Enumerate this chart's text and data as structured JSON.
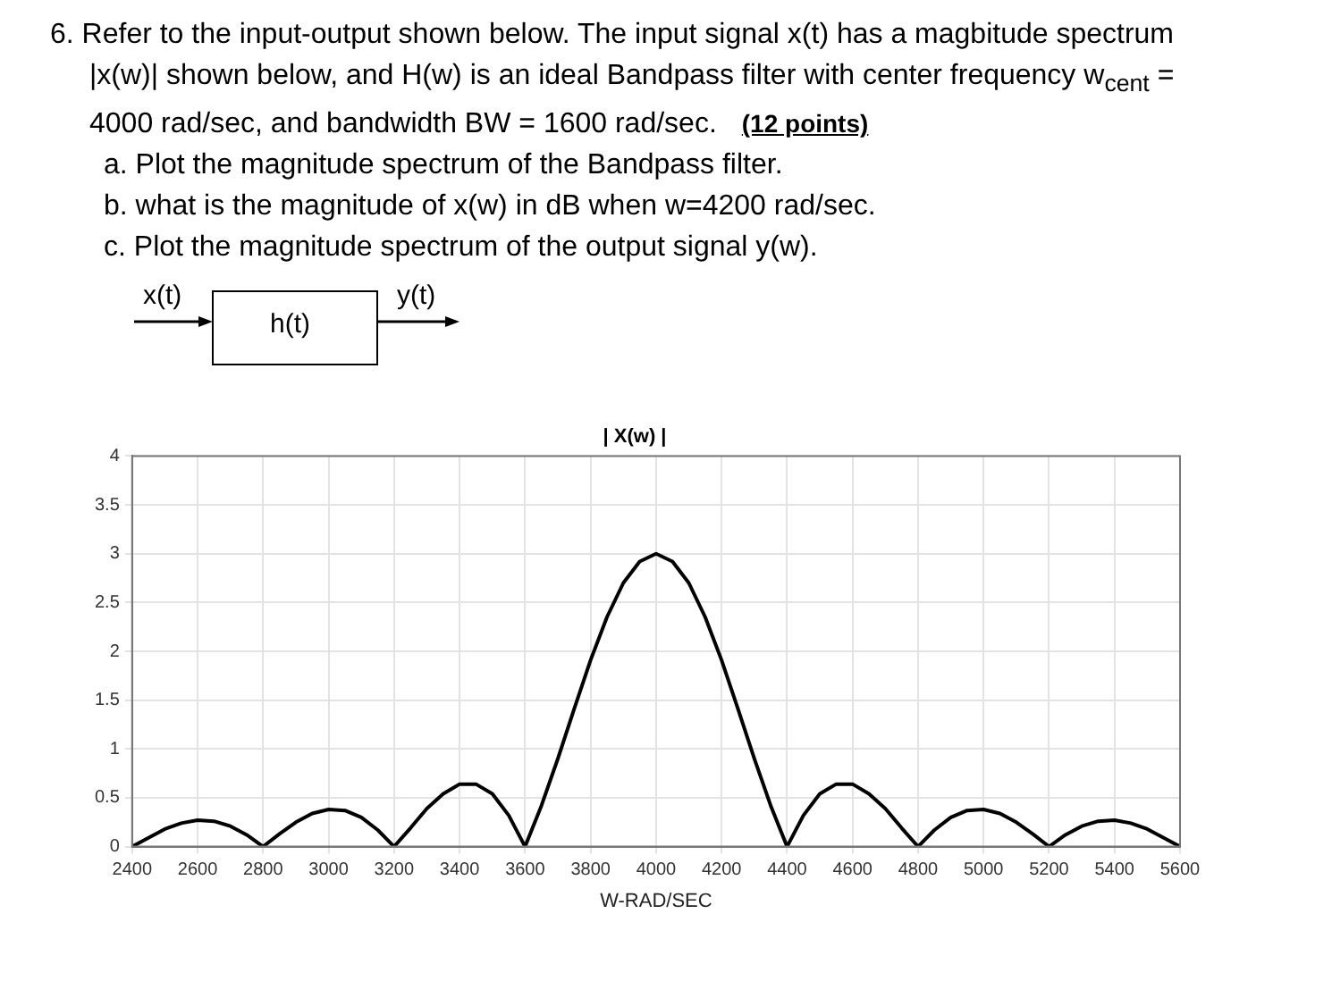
{
  "chart_data": {
    "type": "line",
    "title": "| X(w) |",
    "xlabel": "W-RAD/SEC",
    "annotations": [
      "6. Refer to the input-output shown below. The input signal x(t) has a magbitude spectrum |x(w)| shown below, and H(w) is an ideal Bandpass filter with center frequency w$_{cent}$ = 4000 rad/sec, and bandwidth BW = 1600 rad/sec.",
      "(12 points)",
      "a. Plot the magnitude spectrum of the Bandpass filter.",
      "b. what is the magnitude of x(w) in dB when w=4200 rad/sec.",
      "c. Plot the magnitude spectrum of the output signal y(w).",
      "x(t)",
      "h(t)",
      "y(t)"
    ],
    "x": [
      2400,
      2450,
      2500,
      2550,
      2600,
      2650,
      2700,
      2750,
      2800,
      2850,
      2900,
      2950,
      3000,
      3050,
      3100,
      3150,
      3200,
      3250,
      3300,
      3350,
      3400,
      3450,
      3500,
      3550,
      3600,
      3650,
      3700,
      3750,
      3800,
      3850,
      3900,
      3950,
      4000,
      4050,
      4100,
      4150,
      4200,
      4250,
      4300,
      4350,
      4400,
      4450,
      4500,
      4550,
      4600,
      4650,
      4700,
      4750,
      4800,
      4850,
      4900,
      4950,
      5000,
      5050,
      5100,
      5150,
      5200,
      5250,
      5300,
      5350,
      5400,
      5450,
      5500,
      5550,
      5600
    ],
    "series": [
      {
        "color": "#000000",
        "values": [
          0,
          0.09,
          0.18,
          0.24,
          0.27,
          0.26,
          0.21,
          0.12,
          0,
          0.13,
          0.25,
          0.34,
          0.38,
          0.37,
          0.3,
          0.17,
          0,
          0.19,
          0.39,
          0.54,
          0.64,
          0.64,
          0.54,
          0.32,
          0,
          0.42,
          0.9,
          1.41,
          1.91,
          2.35,
          2.7,
          2.92,
          3,
          2.92,
          2.7,
          2.35,
          1.91,
          1.41,
          0.9,
          0.42,
          0,
          0.32,
          0.54,
          0.64,
          0.64,
          0.54,
          0.39,
          0.19,
          0,
          0.17,
          0.3,
          0.37,
          0.38,
          0.34,
          0.25,
          0.13,
          0,
          0.12,
          0.21,
          0.26,
          0.27,
          0.24,
          0.18,
          0.09,
          0
        ]
      }
    ],
    "xlim": [
      2400,
      5600
    ],
    "xticks": [
      2400,
      2600,
      2800,
      3000,
      3200,
      3400,
      3600,
      3800,
      4000,
      4200,
      4400,
      4600,
      4800,
      5000,
      5200,
      5400,
      5600
    ],
    "ylim": [
      0,
      4
    ],
    "yticks": [
      0,
      0.5,
      1,
      1.5,
      2,
      2.5,
      3,
      3.5,
      4
    ],
    "grid": true,
    "legend": false,
    "marker": "none",
    "line_style": "solid"
  }
}
